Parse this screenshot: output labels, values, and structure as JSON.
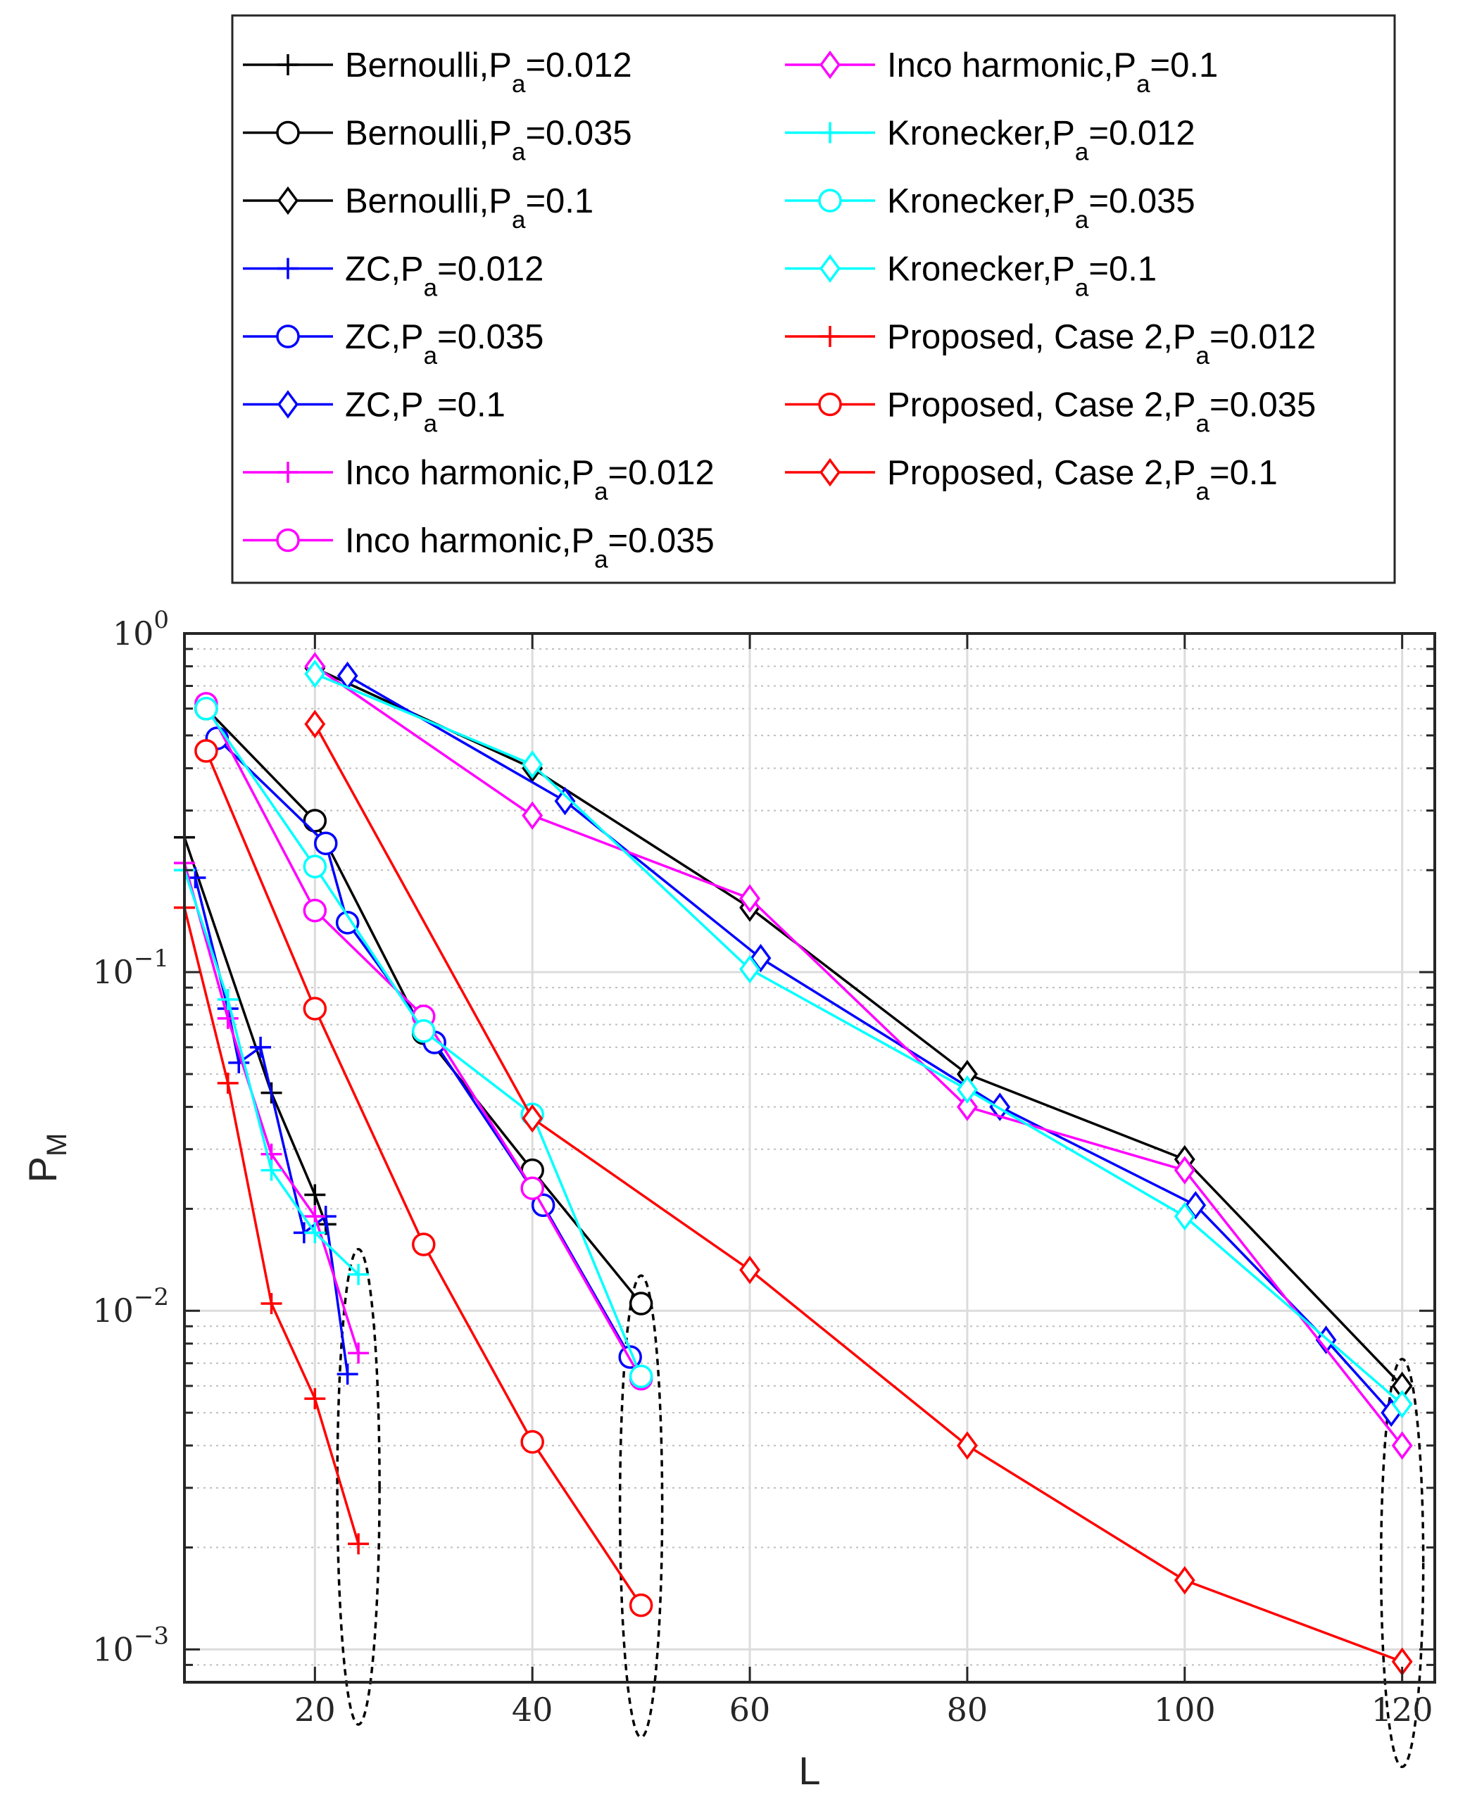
{
  "chart_data": {
    "type": "line",
    "title": "",
    "xlabel": "L",
    "ylabel": "P",
    "ylabel_sub": "M",
    "xscale": "linear",
    "yscale": "log",
    "xlim": [
      8,
      123
    ],
    "ylim": [
      0.0008,
      1
    ],
    "grid": true,
    "legend_position": "top (outside, 2 columns)",
    "x_ticks": [
      20,
      40,
      60,
      80,
      100,
      120
    ],
    "x_tick_labels": [
      "20",
      "40",
      "60",
      "80",
      "100",
      "120"
    ],
    "y_ticks": [
      0.001,
      0.01,
      0.1,
      1
    ],
    "y_tick_labels": [
      {
        "base": "10",
        "exp": "−3"
      },
      {
        "base": "10",
        "exp": "−2"
      },
      {
        "base": "10",
        "exp": "−1"
      },
      {
        "base": "10",
        "exp": "0"
      }
    ],
    "series": [
      {
        "name": "Bernoulli,P",
        "sub": "a",
        "suffix": "=0.012",
        "color": "#000000",
        "marker": "plus",
        "points": [
          [
            8,
            0.25
          ],
          [
            16,
            0.044
          ],
          [
            20,
            0.022
          ],
          [
            21,
            0.018
          ]
        ]
      },
      {
        "name": "Bernoulli,P",
        "sub": "a",
        "suffix": "=0.035",
        "color": "#000000",
        "marker": "circle",
        "points": [
          [
            10,
            0.6
          ],
          [
            20,
            0.28
          ],
          [
            30,
            0.066
          ],
          [
            40,
            0.026
          ],
          [
            50,
            0.0105
          ]
        ]
      },
      {
        "name": "Bernoulli,P",
        "sub": "a",
        "suffix": "=0.1",
        "color": "#000000",
        "marker": "diamond",
        "points": [
          [
            20,
            0.79
          ],
          [
            40,
            0.4
          ],
          [
            60,
            0.155
          ],
          [
            80,
            0.05
          ],
          [
            100,
            0.028
          ],
          [
            120,
            0.006
          ]
        ]
      },
      {
        "name": "ZC,P",
        "sub": "a",
        "suffix": "=0.012",
        "color": "#0000ff",
        "marker": "plus",
        "points": [
          [
            9,
            0.19
          ],
          [
            12,
            0.078
          ],
          [
            13,
            0.054
          ],
          [
            15,
            0.06
          ],
          [
            19,
            0.017
          ],
          [
            21,
            0.019
          ],
          [
            23,
            0.0065
          ]
        ]
      },
      {
        "name": "ZC,P",
        "sub": "a",
        "suffix": "=0.035",
        "color": "#0000ff",
        "marker": "circle",
        "points": [
          [
            11,
            0.49
          ],
          [
            21,
            0.24
          ],
          [
            23,
            0.14
          ],
          [
            31,
            0.062
          ],
          [
            41,
            0.0205
          ],
          [
            49,
            0.0073
          ]
        ]
      },
      {
        "name": "ZC,P",
        "sub": "a",
        "suffix": "=0.1",
        "color": "#0000ff",
        "marker": "diamond",
        "points": [
          [
            23,
            0.75
          ],
          [
            43,
            0.32
          ],
          [
            61,
            0.11
          ],
          [
            83,
            0.04
          ],
          [
            101,
            0.0205
          ],
          [
            113,
            0.0082
          ],
          [
            119,
            0.005
          ]
        ]
      },
      {
        "name": "Inco harmonic,P",
        "sub": "a",
        "suffix": "=0.012",
        "color": "#ff00ff",
        "marker": "plus",
        "points": [
          [
            8,
            0.21
          ],
          [
            12,
            0.073
          ],
          [
            16,
            0.029
          ],
          [
            20,
            0.019
          ],
          [
            24,
            0.0075
          ]
        ]
      },
      {
        "name": "Inco harmonic,P",
        "sub": "a",
        "suffix": "=0.035",
        "color": "#ff00ff",
        "marker": "circle",
        "points": [
          [
            10,
            0.62
          ],
          [
            20,
            0.152
          ],
          [
            30,
            0.074
          ],
          [
            40,
            0.023
          ],
          [
            50,
            0.0063
          ]
        ]
      },
      {
        "name": "Inco harmonic,P",
        "sub": "a",
        "suffix": "=0.1",
        "color": "#ff00ff",
        "marker": "diamond",
        "points": [
          [
            20,
            0.8
          ],
          [
            40,
            0.29
          ],
          [
            60,
            0.165
          ],
          [
            80,
            0.04
          ],
          [
            100,
            0.026
          ],
          [
            120,
            0.004
          ]
        ]
      },
      {
        "name": "Kronecker,P",
        "sub": "a",
        "suffix": "=0.012",
        "color": "#00ffff",
        "marker": "plus",
        "points": [
          [
            8,
            0.2
          ],
          [
            12,
            0.083
          ],
          [
            16,
            0.026
          ],
          [
            20,
            0.017
          ],
          [
            24,
            0.0128
          ]
        ]
      },
      {
        "name": "Kronecker,P",
        "sub": "a",
        "suffix": "=0.035",
        "color": "#00ffff",
        "marker": "circle",
        "points": [
          [
            10,
            0.6
          ],
          [
            20,
            0.205
          ],
          [
            30,
            0.067
          ],
          [
            40,
            0.038
          ],
          [
            50,
            0.0064
          ]
        ]
      },
      {
        "name": "Kronecker,P",
        "sub": "a",
        "suffix": "=0.1",
        "color": "#00ffff",
        "marker": "diamond",
        "points": [
          [
            20,
            0.76
          ],
          [
            40,
            0.41
          ],
          [
            60,
            0.102
          ],
          [
            80,
            0.045
          ],
          [
            100,
            0.019
          ],
          [
            120,
            0.0053
          ]
        ]
      },
      {
        "name": "Proposed, Case 2,P",
        "sub": "a",
        "suffix": "=0.012",
        "color": "#ff0000",
        "marker": "plus",
        "points": [
          [
            8,
            0.155
          ],
          [
            12,
            0.047
          ],
          [
            16,
            0.0105
          ],
          [
            20,
            0.0055
          ],
          [
            24,
            0.00205
          ]
        ]
      },
      {
        "name": "Proposed, Case 2,P",
        "sub": "a",
        "suffix": "=0.035",
        "color": "#ff0000",
        "marker": "circle",
        "points": [
          [
            10,
            0.45
          ],
          [
            20,
            0.078
          ],
          [
            30,
            0.0157
          ],
          [
            40,
            0.0041
          ],
          [
            50,
            0.00135
          ]
        ]
      },
      {
        "name": "Proposed, Case 2,P",
        "sub": "a",
        "suffix": "=0.1",
        "color": "#ff0000",
        "marker": "diamond",
        "points": [
          [
            20,
            0.54
          ],
          [
            40,
            0.037
          ],
          [
            60,
            0.0132
          ],
          [
            80,
            0.004
          ],
          [
            100,
            0.0016
          ],
          [
            120,
            0.00092
          ]
        ]
      }
    ],
    "annotations": [
      {
        "type": "dashed-ellipse",
        "x_center": 24,
        "y_range": [
          0.0006,
          0.0152
        ]
      },
      {
        "type": "dashed-ellipse",
        "x_center": 50,
        "y_range": [
          0.00055,
          0.0127
        ]
      },
      {
        "type": "dashed-ellipse",
        "x_center": 120,
        "y_range": [
          0.00045,
          0.0072
        ]
      }
    ]
  }
}
